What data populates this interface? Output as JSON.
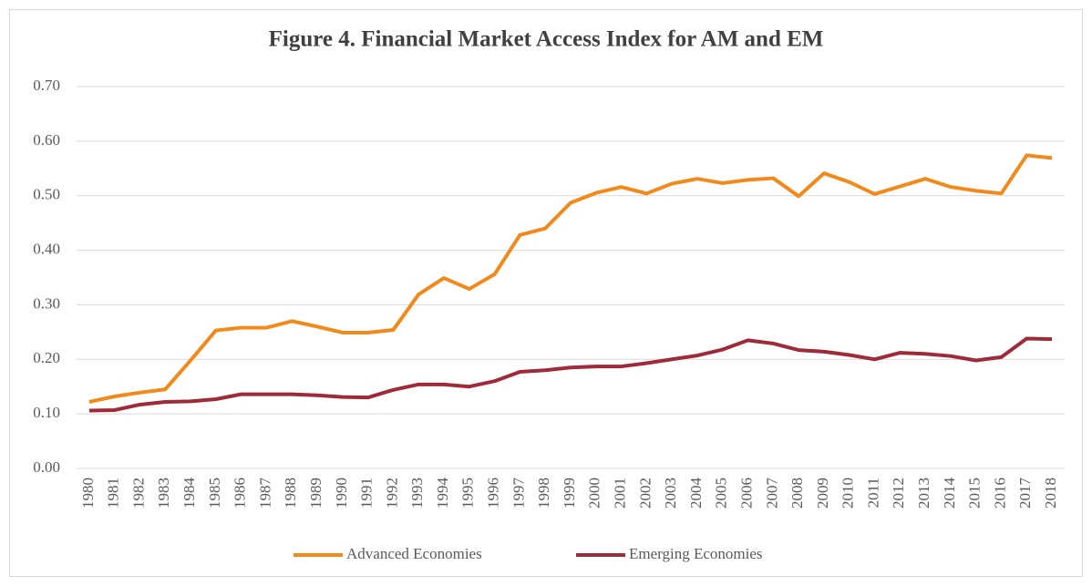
{
  "chart_data": {
    "type": "line",
    "title": "Figure 4. Financial Market Access Index for AM and EM",
    "categories": [
      "1980",
      "1981",
      "1982",
      "1983",
      "1984",
      "1985",
      "1986",
      "1987",
      "1988",
      "1989",
      "1990",
      "1991",
      "1992",
      "1993",
      "1994",
      "1995",
      "1996",
      "1997",
      "1998",
      "1999",
      "2000",
      "2001",
      "2002",
      "2003",
      "2004",
      "2005",
      "2006",
      "2007",
      "2008",
      "2009",
      "2010",
      "2011",
      "2012",
      "2013",
      "2014",
      "2015",
      "2016",
      "2017",
      "2018"
    ],
    "series": [
      {
        "name": "Advanced Economies",
        "color": "#f18a1b",
        "values": [
          0.122,
          0.132,
          0.139,
          0.145,
          0.198,
          0.253,
          0.258,
          0.258,
          0.27,
          0.26,
          0.249,
          0.249,
          0.254,
          0.319,
          0.349,
          0.329,
          0.356,
          0.428,
          0.44,
          0.487,
          0.505,
          0.516,
          0.504,
          0.522,
          0.531,
          0.523,
          0.529,
          0.532,
          0.499,
          0.541,
          0.525,
          0.503,
          0.517,
          0.531,
          0.516,
          0.509,
          0.504,
          0.574,
          0.569
        ]
      },
      {
        "name": "Emerging Economies",
        "color": "#9e2a3a",
        "values": [
          0.106,
          0.107,
          0.117,
          0.122,
          0.123,
          0.127,
          0.136,
          0.136,
          0.136,
          0.134,
          0.131,
          0.13,
          0.144,
          0.154,
          0.154,
          0.15,
          0.16,
          0.177,
          0.18,
          0.185,
          0.187,
          0.187,
          0.193,
          0.2,
          0.207,
          0.218,
          0.235,
          0.229,
          0.217,
          0.214,
          0.208,
          0.2,
          0.212,
          0.21,
          0.206,
          0.198,
          0.204,
          0.238,
          0.237
        ]
      }
    ],
    "ylim": [
      0,
      0.7
    ],
    "yticks": [
      {
        "value": 0,
        "label": "0.00"
      },
      {
        "value": 0.1,
        "label": "0.10"
      },
      {
        "value": 0.2,
        "label": "0.20"
      },
      {
        "value": 0.3,
        "label": "0.30"
      },
      {
        "value": 0.4,
        "label": "0.40"
      },
      {
        "value": 0.5,
        "label": "0.50"
      },
      {
        "value": 0.6,
        "label": "0.60"
      },
      {
        "value": 0.7,
        "label": "0.70"
      }
    ],
    "grid": true,
    "legend": "bottom"
  }
}
